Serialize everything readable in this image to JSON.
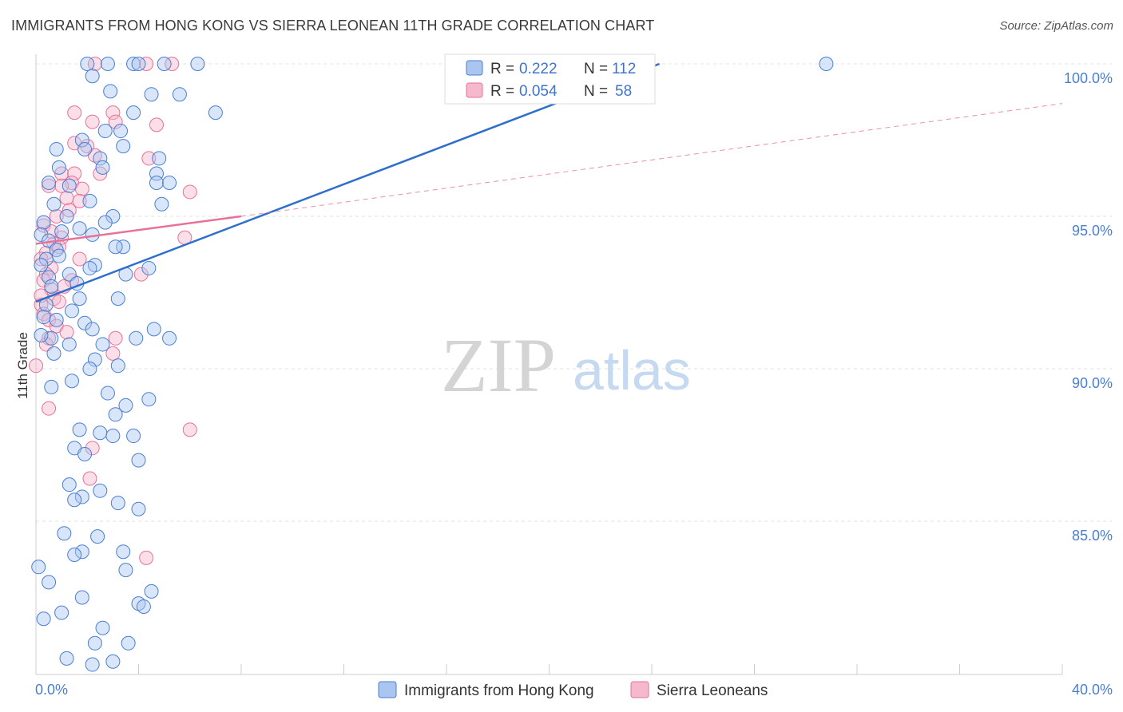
{
  "title": "IMMIGRANTS FROM HONG KONG VS SIERRA LEONEAN 11TH GRADE CORRELATION CHART",
  "source": "Source: ZipAtlas.com",
  "watermark": {
    "zip": "ZIP",
    "atlas": "atlas"
  },
  "colors": {
    "blue": "#4a7fd0",
    "blue_fill": "#aac6f0",
    "blue_line": "#2f6fcc",
    "pink": "#e8719a",
    "pink_fill": "#f5b8cc"
  },
  "chart_data": {
    "type": "scatter",
    "title": "IMMIGRANTS FROM HONG KONG VS SIERRA LEONEAN 11TH GRADE CORRELATION CHART",
    "xlabel": "",
    "ylabel": "11th Grade",
    "xlim": [
      0,
      40
    ],
    "ylim": [
      80,
      100.6
    ],
    "x_edge_labels": [
      "0.0%",
      "40.0%"
    ],
    "y_ticks": [
      {
        "value": 100,
        "label": "100.0%"
      },
      {
        "value": 95,
        "label": "95.0%"
      },
      {
        "value": 90,
        "label": "90.0%"
      },
      {
        "value": 85,
        "label": "85.0%"
      }
    ],
    "legend_stats": [
      {
        "r_label": "R =",
        "r": "0.222",
        "n_label": "N =",
        "n": "112"
      },
      {
        "r_label": "R =",
        "r": "0.054",
        "n_label": "N =",
        "n": "58"
      }
    ],
    "series": [
      {
        "name": "Immigrants from Hong Kong",
        "color": "#4a7fd0",
        "trend": {
          "x": [
            0,
            24.3
          ],
          "y": [
            92.2,
            100.0
          ],
          "x_ext": [
            24.3,
            31.5
          ],
          "y_ext": [
            100.0,
            102.3
          ],
          "style": "solid"
        },
        "points": [
          [
            2.0,
            100.0
          ],
          [
            2.8,
            100.0
          ],
          [
            3.8,
            100.0
          ],
          [
            4.0,
            100.0
          ],
          [
            5.0,
            100.0
          ],
          [
            6.3,
            100.0
          ],
          [
            30.8,
            100.0
          ],
          [
            2.2,
            99.6
          ],
          [
            2.9,
            99.1
          ],
          [
            4.5,
            99.0
          ],
          [
            5.6,
            99.0
          ],
          [
            3.8,
            98.4
          ],
          [
            7.0,
            98.4
          ],
          [
            2.7,
            97.8
          ],
          [
            3.3,
            97.8
          ],
          [
            1.8,
            97.5
          ],
          [
            3.4,
            97.3
          ],
          [
            1.9,
            97.2
          ],
          [
            0.8,
            97.2
          ],
          [
            2.5,
            96.9
          ],
          [
            4.8,
            96.9
          ],
          [
            2.6,
            96.6
          ],
          [
            0.9,
            96.6
          ],
          [
            4.7,
            96.4
          ],
          [
            0.5,
            96.1
          ],
          [
            1.3,
            96.0
          ],
          [
            4.7,
            96.1
          ],
          [
            5.2,
            96.1
          ],
          [
            2.1,
            95.5
          ],
          [
            0.7,
            95.4
          ],
          [
            4.9,
            95.4
          ],
          [
            1.2,
            95.0
          ],
          [
            3.0,
            95.0
          ],
          [
            2.7,
            94.8
          ],
          [
            0.3,
            94.8
          ],
          [
            1.7,
            94.6
          ],
          [
            0.2,
            94.4
          ],
          [
            1.0,
            94.5
          ],
          [
            2.2,
            94.4
          ],
          [
            0.5,
            94.2
          ],
          [
            3.4,
            94.0
          ],
          [
            0.8,
            93.9
          ],
          [
            3.1,
            94.0
          ],
          [
            0.9,
            93.7
          ],
          [
            0.4,
            93.6
          ],
          [
            2.3,
            93.4
          ],
          [
            2.1,
            93.3
          ],
          [
            0.2,
            93.4
          ],
          [
            1.3,
            93.1
          ],
          [
            0.5,
            93.0
          ],
          [
            3.5,
            93.1
          ],
          [
            4.4,
            93.3
          ],
          [
            1.6,
            92.8
          ],
          [
            0.6,
            92.7
          ],
          [
            1.7,
            92.3
          ],
          [
            3.2,
            92.3
          ],
          [
            0.4,
            92.1
          ],
          [
            1.4,
            91.9
          ],
          [
            0.3,
            91.7
          ],
          [
            0.8,
            91.6
          ],
          [
            1.9,
            91.5
          ],
          [
            2.2,
            91.3
          ],
          [
            4.6,
            91.3
          ],
          [
            0.6,
            91.0
          ],
          [
            0.2,
            91.1
          ],
          [
            3.9,
            91.0
          ],
          [
            5.2,
            91.0
          ],
          [
            1.3,
            90.8
          ],
          [
            0.7,
            90.5
          ],
          [
            2.6,
            90.8
          ],
          [
            2.3,
            90.3
          ],
          [
            2.1,
            90.0
          ],
          [
            3.2,
            90.1
          ],
          [
            1.4,
            89.6
          ],
          [
            4.4,
            89.0
          ],
          [
            0.6,
            89.4
          ],
          [
            2.8,
            89.2
          ],
          [
            3.5,
            88.8
          ],
          [
            3.1,
            88.5
          ],
          [
            1.7,
            88.0
          ],
          [
            2.5,
            87.9
          ],
          [
            3.0,
            87.8
          ],
          [
            3.8,
            87.8
          ],
          [
            1.5,
            87.4
          ],
          [
            1.9,
            87.2
          ],
          [
            4.0,
            87.0
          ],
          [
            1.3,
            86.2
          ],
          [
            2.5,
            86.0
          ],
          [
            1.8,
            85.8
          ],
          [
            1.5,
            85.7
          ],
          [
            3.2,
            85.6
          ],
          [
            4.0,
            85.4
          ],
          [
            1.8,
            84.0
          ],
          [
            1.5,
            83.9
          ],
          [
            3.5,
            83.4
          ],
          [
            1.8,
            82.5
          ],
          [
            4.0,
            82.3
          ],
          [
            4.2,
            82.2
          ],
          [
            2.3,
            81.0
          ],
          [
            1.2,
            80.5
          ],
          [
            3.0,
            80.4
          ],
          [
            2.2,
            80.3
          ],
          [
            0.1,
            83.5
          ],
          [
            0.5,
            83.0
          ],
          [
            1.0,
            82.0
          ],
          [
            2.6,
            81.5
          ],
          [
            3.6,
            81.0
          ],
          [
            0.3,
            81.8
          ],
          [
            4.5,
            82.7
          ],
          [
            1.1,
            84.6
          ],
          [
            2.4,
            84.5
          ],
          [
            3.4,
            84.0
          ]
        ]
      },
      {
        "name": "Sierra Leoneans",
        "color": "#e8719a",
        "trend": {
          "x": [
            0,
            8.0
          ],
          "y": [
            94.1,
            95.0
          ],
          "x_ext": [
            8.0,
            40.0
          ],
          "y_ext": [
            95.0,
            98.7
          ],
          "style": "solid+dashed"
        },
        "points": [
          [
            2.3,
            100.0
          ],
          [
            4.3,
            100.0
          ],
          [
            5.3,
            100.0
          ],
          [
            1.5,
            98.4
          ],
          [
            3.0,
            98.4
          ],
          [
            2.2,
            98.1
          ],
          [
            3.1,
            98.1
          ],
          [
            4.7,
            98.0
          ],
          [
            1.5,
            97.4
          ],
          [
            2.0,
            97.3
          ],
          [
            2.3,
            97.0
          ],
          [
            4.4,
            96.9
          ],
          [
            1.0,
            96.4
          ],
          [
            1.5,
            96.4
          ],
          [
            2.5,
            96.4
          ],
          [
            1.4,
            96.1
          ],
          [
            1.0,
            96.0
          ],
          [
            0.5,
            96.0
          ],
          [
            1.8,
            95.9
          ],
          [
            1.2,
            95.6
          ],
          [
            1.7,
            95.5
          ],
          [
            1.3,
            95.2
          ],
          [
            0.8,
            95.0
          ],
          [
            6.0,
            95.8
          ],
          [
            0.3,
            94.7
          ],
          [
            1.0,
            94.3
          ],
          [
            0.7,
            94.1
          ],
          [
            0.9,
            94.0
          ],
          [
            0.4,
            93.8
          ],
          [
            5.8,
            94.3
          ],
          [
            0.2,
            93.6
          ],
          [
            1.7,
            93.6
          ],
          [
            0.6,
            93.3
          ],
          [
            0.4,
            93.1
          ],
          [
            0.3,
            92.9
          ],
          [
            1.4,
            92.9
          ],
          [
            0.6,
            92.6
          ],
          [
            0.7,
            92.3
          ],
          [
            0.9,
            92.2
          ],
          [
            0.2,
            92.1
          ],
          [
            4.1,
            93.1
          ],
          [
            0.3,
            91.8
          ],
          [
            0.5,
            91.6
          ],
          [
            0.8,
            91.4
          ],
          [
            1.2,
            91.2
          ],
          [
            0.5,
            91.0
          ],
          [
            0.4,
            90.8
          ],
          [
            3.1,
            91.0
          ],
          [
            3.0,
            90.5
          ],
          [
            0.0,
            90.1
          ],
          [
            0.5,
            88.7
          ],
          [
            6.0,
            88.0
          ],
          [
            2.2,
            87.4
          ],
          [
            2.1,
            86.4
          ],
          [
            4.3,
            83.8
          ],
          [
            0.2,
            92.4
          ],
          [
            1.1,
            92.7
          ],
          [
            0.6,
            94.5
          ]
        ]
      }
    ]
  },
  "legend": {
    "items": [
      "Immigrants from Hong Kong",
      "Sierra Leoneans"
    ]
  }
}
